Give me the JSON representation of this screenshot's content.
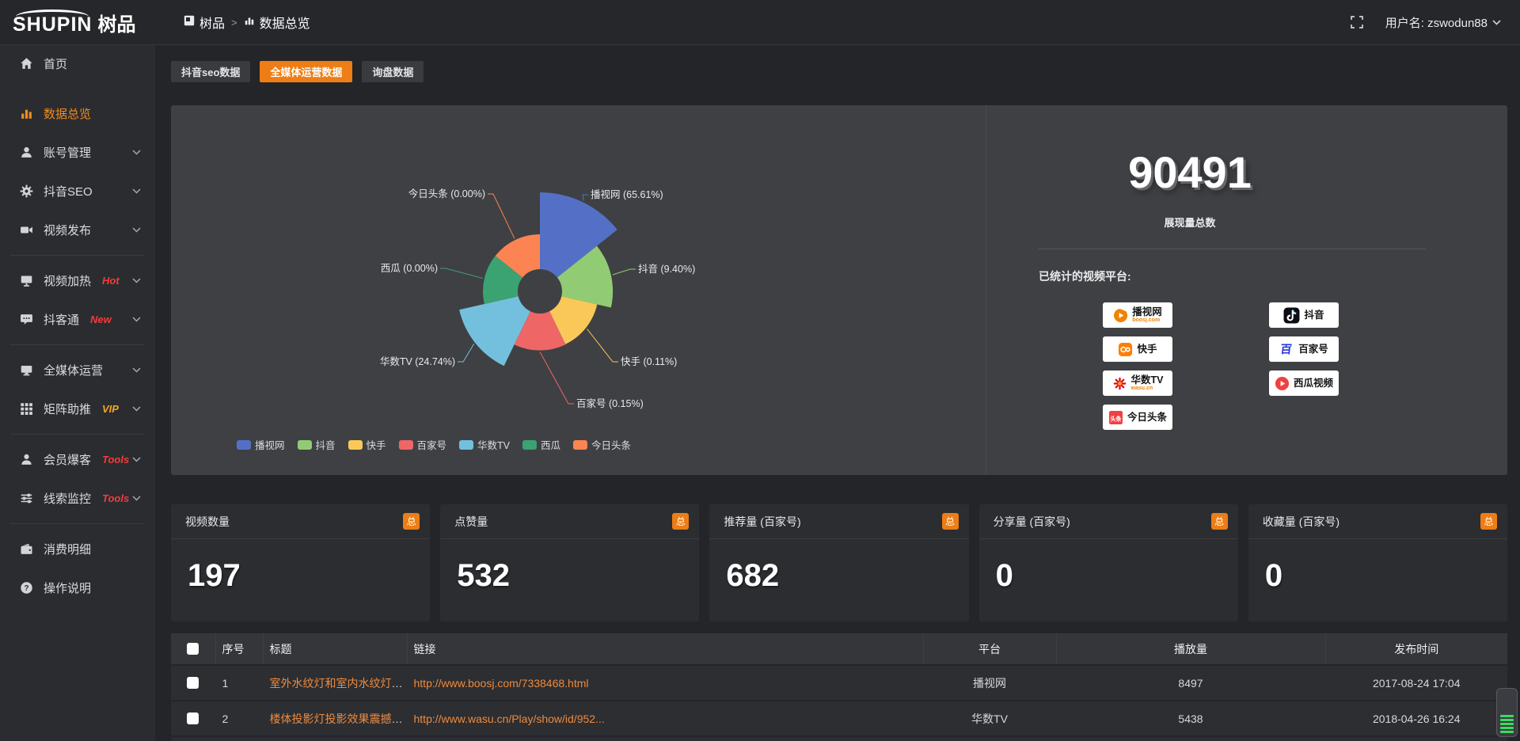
{
  "topbar": {
    "logo_en": "SHUPIN",
    "logo_cn": "树品",
    "breadcrumb": {
      "root": "树品",
      "separator": ">",
      "current": "数据总览"
    },
    "username": "用户名: zswodun88"
  },
  "sidebar": {
    "items": [
      {
        "label": "首页",
        "icon": "home-icon",
        "active": false,
        "expandable": false,
        "divider_after": false
      },
      {
        "label": "数据总览",
        "icon": "bar-chart-icon",
        "active": true,
        "expandable": false,
        "divider_after": false
      },
      {
        "label": "账号管理",
        "icon": "user-icon",
        "active": false,
        "expandable": true,
        "divider_after": false
      },
      {
        "label": "抖音SEO",
        "icon": "gear-icon",
        "active": false,
        "expandable": true,
        "divider_after": false
      },
      {
        "label": "视频发布",
        "icon": "camera-icon",
        "active": false,
        "expandable": true,
        "divider_after": true
      },
      {
        "label": "视频加热",
        "icon": "monitor-icon",
        "badge": "Hot",
        "badge_color": "#f23c3c",
        "active": false,
        "expandable": true,
        "divider_after": false
      },
      {
        "label": "抖客通",
        "icon": "chat-icon",
        "badge": "New",
        "badge_color": "#f23c3c",
        "active": false,
        "expandable": true,
        "divider_after": true
      },
      {
        "label": "全媒体运营",
        "icon": "display-icon",
        "active": false,
        "expandable": true,
        "divider_after": false
      },
      {
        "label": "矩阵助推",
        "icon": "grid-icon",
        "badge": "VIP",
        "badge_color": "#f5a623",
        "active": false,
        "expandable": true,
        "divider_after": true
      },
      {
        "label": "会员爆客",
        "icon": "member-icon",
        "badge": "Tools",
        "badge_color": "#f23c3c",
        "active": false,
        "expandable": true,
        "divider_after": false
      },
      {
        "label": "线索监控",
        "icon": "sliders-icon",
        "badge": "Tools",
        "badge_color": "#f23c3c",
        "active": false,
        "expandable": true,
        "divider_after": true
      },
      {
        "label": "消费明细",
        "icon": "wallet-icon",
        "active": false,
        "expandable": false,
        "divider_after": false
      },
      {
        "label": "操作说明",
        "icon": "help-icon",
        "active": false,
        "expandable": false,
        "divider_after": false
      }
    ]
  },
  "tabs": [
    {
      "label": "抖音seo数据",
      "active": false
    },
    {
      "label": "全媒体运营数据",
      "active": true
    },
    {
      "label": "询盘数据",
      "active": false
    }
  ],
  "chart_data": {
    "type": "pie",
    "style": "nightingale-rose",
    "series": [
      {
        "name": "播视网",
        "percent": 65.61
      },
      {
        "name": "抖音",
        "percent": 9.4
      },
      {
        "name": "快手",
        "percent": 0.11
      },
      {
        "name": "百家号",
        "percent": 0.15
      },
      {
        "name": "华数TV",
        "percent": 24.74
      },
      {
        "name": "西瓜",
        "percent": 0.0
      },
      {
        "name": "今日头条",
        "percent": 0.0
      }
    ],
    "colors": [
      "#5470c6",
      "#91cc75",
      "#fac858",
      "#ee6666",
      "#73c0de",
      "#3ba272",
      "#fc8452"
    ],
    "legend": [
      "播视网",
      "抖音",
      "快手",
      "百家号",
      "华数TV",
      "西瓜",
      "今日头条"
    ],
    "legend_position": "bottom",
    "label_format": "{name} ({percent}%)"
  },
  "summary": {
    "total_value": "90491",
    "total_label": "展现量总数",
    "platforms_label": "已统计的视频平台:",
    "platform_badges_left": [
      {
        "name": "播视网",
        "sub": "boosj.com",
        "logo": "boosj-logo",
        "logo_color": "#f08300",
        "sub_color": "#f08300"
      },
      {
        "name": "快手",
        "sub": "",
        "logo": "kuaishou-logo",
        "logo_color": "#ff7e00",
        "sub_color": ""
      },
      {
        "name": "华数TV",
        "sub": "wasu.cn",
        "logo": "wasu-logo",
        "logo_color": "#e60012",
        "sub_color": "#f08300"
      },
      {
        "name": "今日头条",
        "sub": "",
        "logo": "toutiao-logo",
        "logo_color": "#f04142",
        "sub_color": "#f04142"
      }
    ],
    "platform_badges_right": [
      {
        "name": "抖音",
        "sub": "",
        "logo": "douyin-logo",
        "logo_color": "#0d0d16",
        "sub_color": ""
      },
      {
        "name": "百家号",
        "sub": "",
        "logo": "baijiahao-logo",
        "logo_color": "#2932e1",
        "sub_color": ""
      },
      {
        "name": "西瓜视频",
        "sub": "",
        "logo": "xigua-logo",
        "logo_color": "#f04142",
        "sub_color": ""
      }
    ]
  },
  "stat_cards": [
    {
      "title": "视频数量",
      "badge": "总",
      "value": "197"
    },
    {
      "title": "点赞量",
      "badge": "总",
      "value": "532"
    },
    {
      "title": "推荐量 (百家号)",
      "badge": "总",
      "value": "682"
    },
    {
      "title": "分享量 (百家号)",
      "badge": "总",
      "value": "0"
    },
    {
      "title": "收藏量 (百家号)",
      "badge": "总",
      "value": "0"
    }
  ],
  "table": {
    "columns": [
      "序号",
      "标题",
      "链接",
      "平台",
      "播放量",
      "发布时间"
    ],
    "rows": [
      {
        "index": "1",
        "title": "室外水纹灯和室内水纹灯的区别和简介",
        "link": "http://www.boosj.com/7338468.html",
        "platform": "播视网",
        "plays": "8497",
        "time": "2017-08-24 17:04"
      },
      {
        "index": "2",
        "title": "楼体投影灯投影效果震撼上市",
        "link": "http://www.wasu.cn/Play/show/id/952...",
        "platform": "华数TV",
        "plays": "5438",
        "time": "2018-04-26 16:24"
      }
    ]
  },
  "colors": {
    "accent": "#ed7d14",
    "link": "#ee8a3e",
    "panel_bg": "#3f4043",
    "sidebar_bg": "#2b2c2f"
  }
}
